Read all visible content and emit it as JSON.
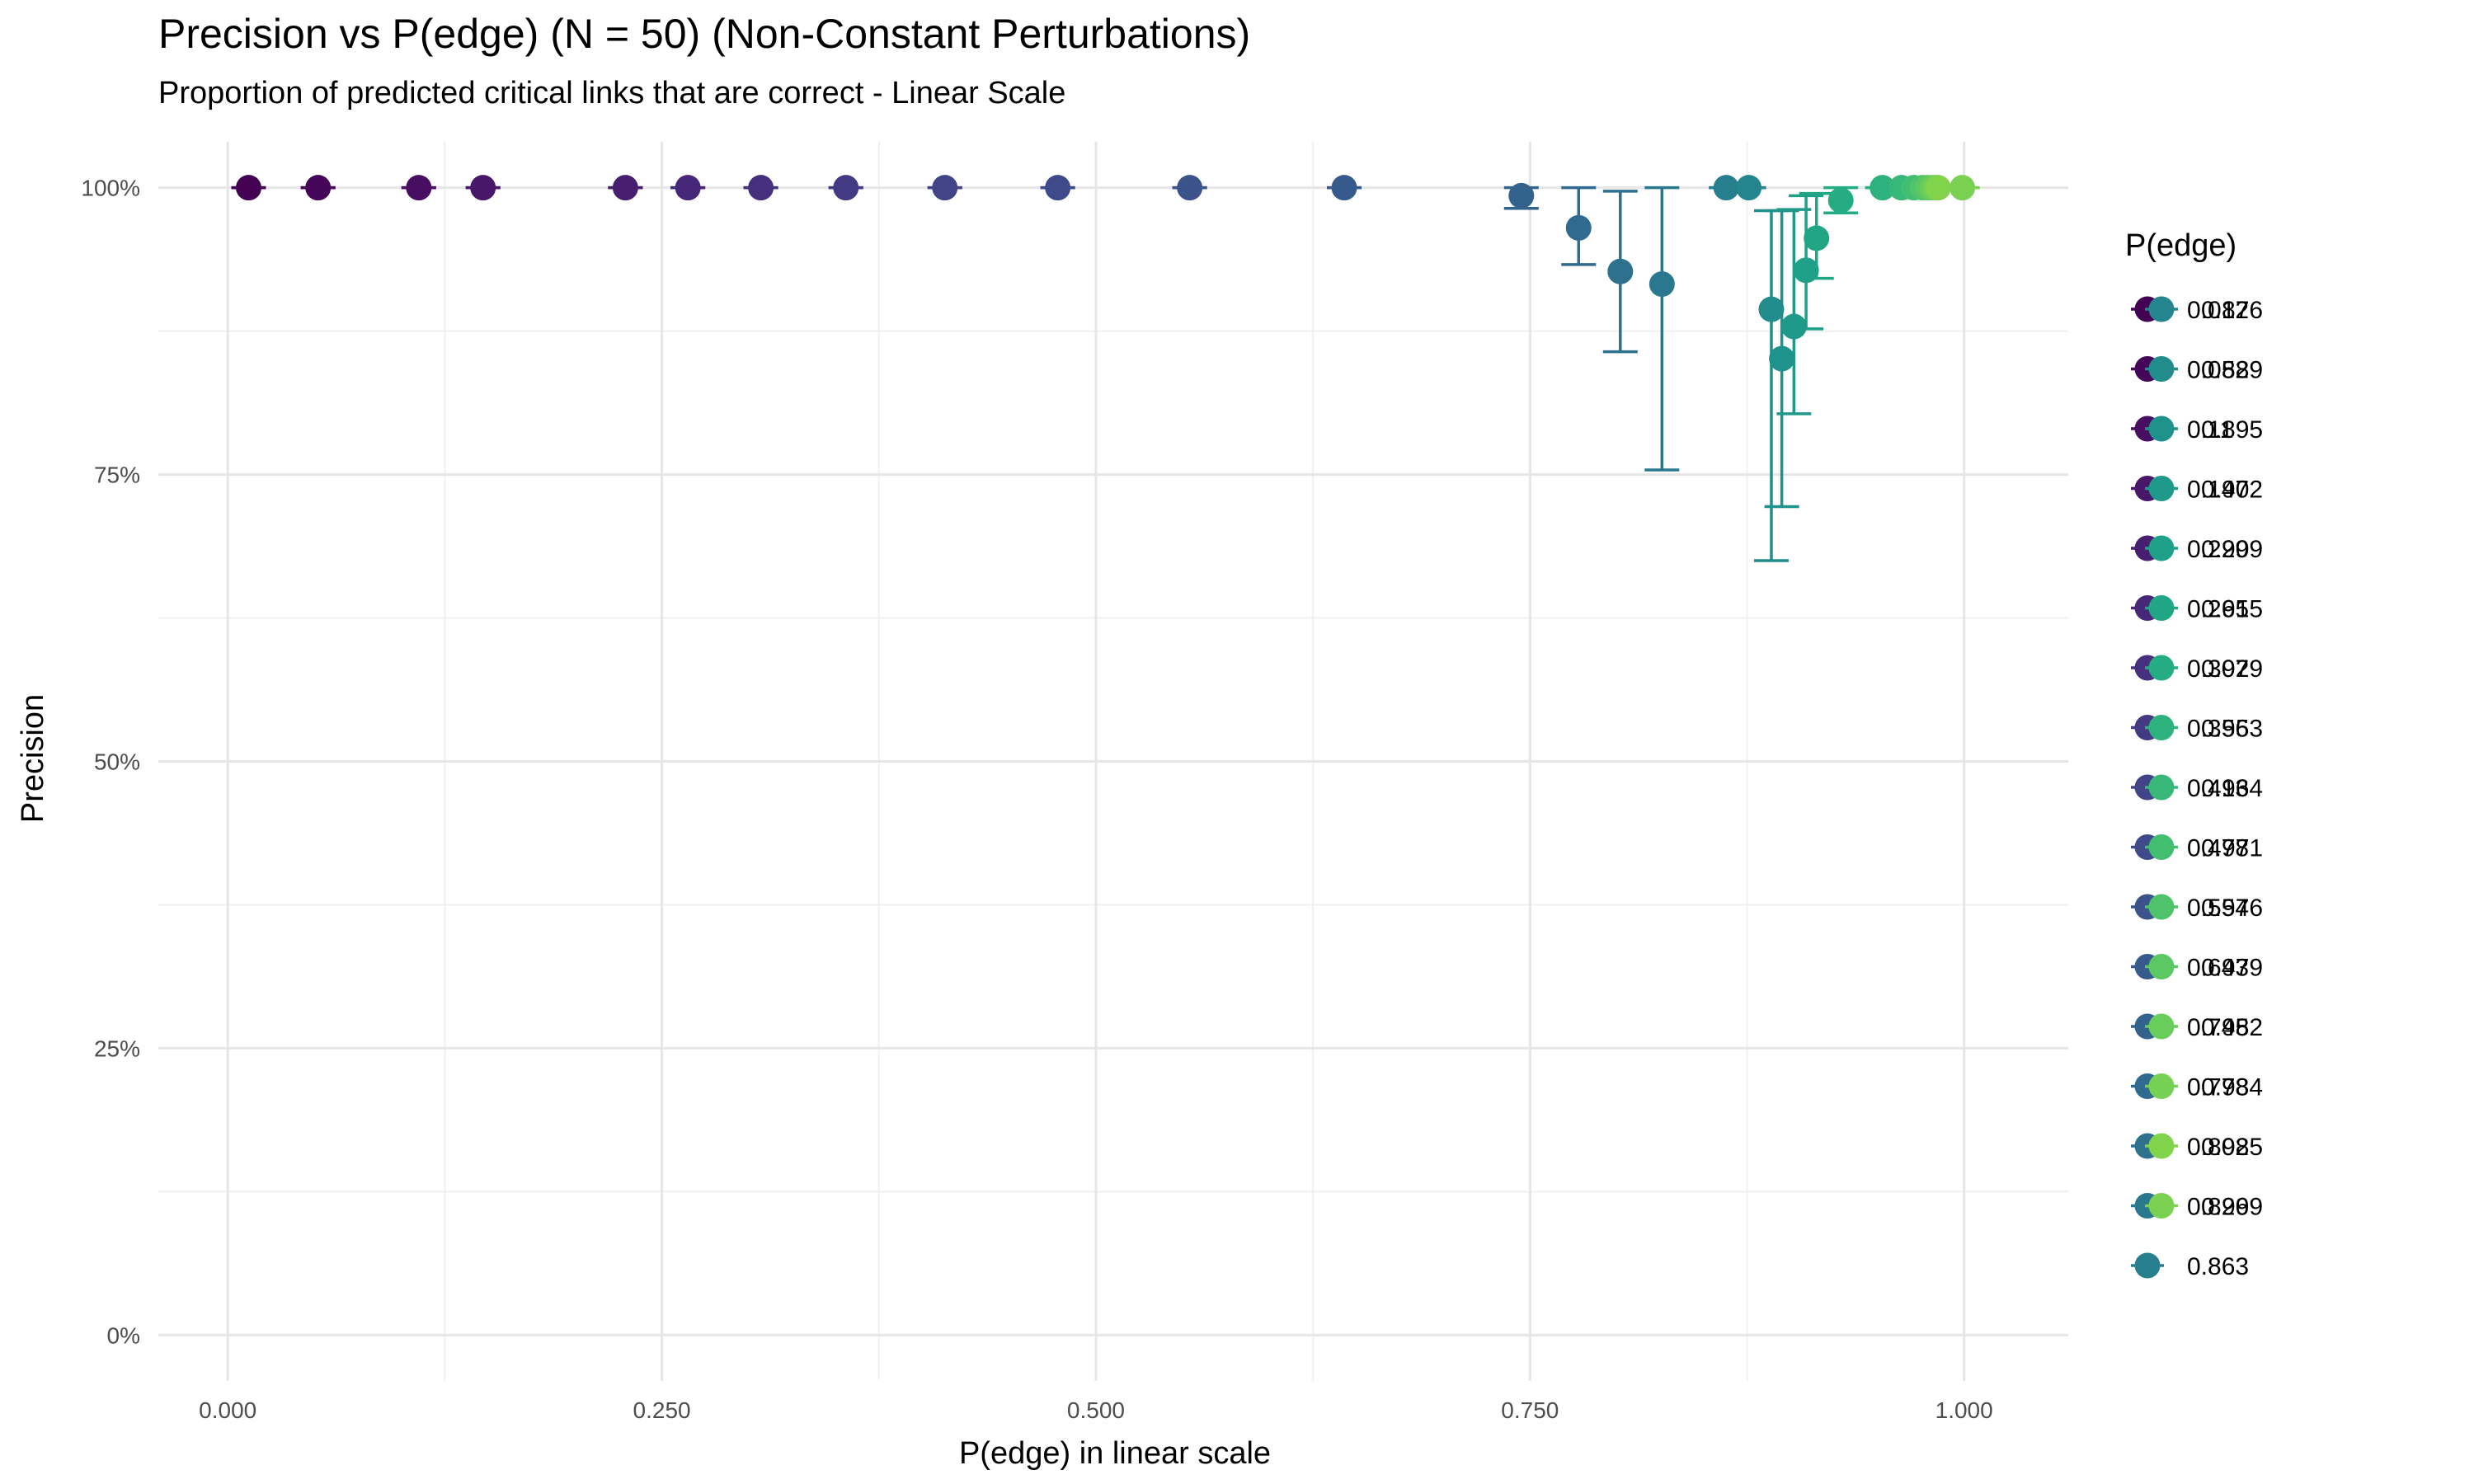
{
  "chart_data": {
    "type": "scatter",
    "title": "Precision vs P(edge) (N = 50) (Non-Constant Perturbations)",
    "subtitle": "Proportion of predicted critical links that are correct - Linear Scale",
    "xlabel": "P(edge) in linear scale",
    "ylabel": "Precision",
    "xlim": [
      -0.04,
      1.06
    ],
    "ylim": [
      -0.04,
      1.04
    ],
    "x_ticks": [
      0,
      0.25,
      0.5,
      0.75,
      1.0
    ],
    "x_tick_labels": [
      "0.000",
      "0.250",
      "0.500",
      "0.750",
      "1.000"
    ],
    "y_ticks": [
      0,
      0.25,
      0.5,
      0.75,
      1.0
    ],
    "y_tick_labels": [
      "0%",
      "25%",
      "50%",
      "75%",
      "100%"
    ],
    "grid": true,
    "legend_title": "P(edge)",
    "legend_position": "right",
    "points": [
      {
        "label": "0.012",
        "x": 0.012,
        "y": 1.0,
        "lo": 1.0,
        "hi": 1.0,
        "color": "#440154"
      },
      {
        "label": "0.052",
        "x": 0.052,
        "y": 1.0,
        "lo": 1.0,
        "hi": 1.0,
        "color": "#450559"
      },
      {
        "label": "0.11",
        "x": 0.11,
        "y": 1.0,
        "lo": 1.0,
        "hi": 1.0,
        "color": "#470E61"
      },
      {
        "label": "0.147",
        "x": 0.147,
        "y": 1.0,
        "lo": 1.0,
        "hi": 1.0,
        "color": "#481769"
      },
      {
        "label": "0.229",
        "x": 0.229,
        "y": 1.0,
        "lo": 1.0,
        "hi": 1.0,
        "color": "#481F70"
      },
      {
        "label": "0.265",
        "x": 0.265,
        "y": 1.0,
        "lo": 1.0,
        "hi": 1.0,
        "color": "#472777"
      },
      {
        "label": "0.307",
        "x": 0.307,
        "y": 1.0,
        "lo": 1.0,
        "hi": 1.0,
        "color": "#46307E"
      },
      {
        "label": "0.356",
        "x": 0.356,
        "y": 1.0,
        "lo": 1.0,
        "hi": 1.0,
        "color": "#443983"
      },
      {
        "label": "0.413",
        "x": 0.413,
        "y": 1.0,
        "lo": 1.0,
        "hi": 1.0,
        "color": "#414487"
      },
      {
        "label": "0.478",
        "x": 0.478,
        "y": 1.0,
        "lo": 1.0,
        "hi": 1.0,
        "color": "#3E4A89"
      },
      {
        "label": "0.554",
        "x": 0.554,
        "y": 1.0,
        "lo": 1.0,
        "hi": 1.0,
        "color": "#3B528B"
      },
      {
        "label": "0.643",
        "x": 0.643,
        "y": 1.0,
        "lo": 1.0,
        "hi": 1.0,
        "color": "#375A8C"
      },
      {
        "label": "0.745",
        "x": 0.745,
        "y": 0.993,
        "lo": 0.982,
        "hi": 1.0,
        "color": "#33638D"
      },
      {
        "label": "0.778",
        "x": 0.778,
        "y": 0.965,
        "lo": 0.933,
        "hi": 1.0,
        "color": "#306A8E"
      },
      {
        "label": "0.802",
        "x": 0.802,
        "y": 0.927,
        "lo": 0.857,
        "hi": 0.997,
        "color": "#2D718E"
      },
      {
        "label": "0.826",
        "x": 0.826,
        "y": 0.916,
        "lo": 0.754,
        "hi": 1.0,
        "color": "#2A788E"
      },
      {
        "label": "0.863",
        "x": 0.863,
        "y": 1.0,
        "lo": 1.0,
        "hi": 1.0,
        "color": "#277F8E"
      },
      {
        "label": "0.876",
        "x": 0.876,
        "y": 1.0,
        "lo": 1.0,
        "hi": 1.0,
        "color": "#25858E"
      },
      {
        "label": "0.889",
        "x": 0.889,
        "y": 0.894,
        "lo": 0.675,
        "hi": 0.98,
        "color": "#228C8D"
      },
      {
        "label": "0.895",
        "x": 0.895,
        "y": 0.851,
        "lo": 0.722,
        "hi": 0.98,
        "color": "#20928C"
      },
      {
        "label": "0.902",
        "x": 0.902,
        "y": 0.879,
        "lo": 0.803,
        "hi": 0.981,
        "color": "#1F998A"
      },
      {
        "label": "0.909",
        "x": 0.909,
        "y": 0.928,
        "lo": 0.877,
        "hi": 0.993,
        "color": "#1FA088"
      },
      {
        "label": "0.915",
        "x": 0.915,
        "y": 0.956,
        "lo": 0.921,
        "hi": 0.995,
        "color": "#21A685"
      },
      {
        "label": "0.929",
        "x": 0.929,
        "y": 0.989,
        "lo": 0.978,
        "hi": 1.0,
        "color": "#25AC82"
      },
      {
        "label": "0.953",
        "x": 0.953,
        "y": 1.0,
        "lo": 1.0,
        "hi": 1.0,
        "color": "#2DB27D"
      },
      {
        "label": "0.964",
        "x": 0.964,
        "y": 1.0,
        "lo": 1.0,
        "hi": 1.0,
        "color": "#37B878"
      },
      {
        "label": "0.971",
        "x": 0.971,
        "y": 1.0,
        "lo": 1.0,
        "hi": 1.0,
        "color": "#42BE71"
      },
      {
        "label": "0.976",
        "x": 0.976,
        "y": 1.0,
        "lo": 1.0,
        "hi": 1.0,
        "color": "#4EC36B"
      },
      {
        "label": "0.979",
        "x": 0.979,
        "y": 1.0,
        "lo": 1.0,
        "hi": 1.0,
        "color": "#5BC863"
      },
      {
        "label": "0.982",
        "x": 0.982,
        "y": 1.0,
        "lo": 1.0,
        "hi": 1.0,
        "color": "#68CD5B"
      },
      {
        "label": "0.984",
        "x": 0.984,
        "y": 1.0,
        "lo": 1.0,
        "hi": 1.0,
        "color": "#75D054"
      },
      {
        "label": "0.985",
        "x": 0.985,
        "y": 1.0,
        "lo": 1.0,
        "hi": 1.0,
        "color": "#82D34C"
      },
      {
        "label": "0.999",
        "x": 0.999,
        "y": 1.0,
        "lo": 1.0,
        "hi": 1.0,
        "color": "#7AD151"
      }
    ]
  }
}
